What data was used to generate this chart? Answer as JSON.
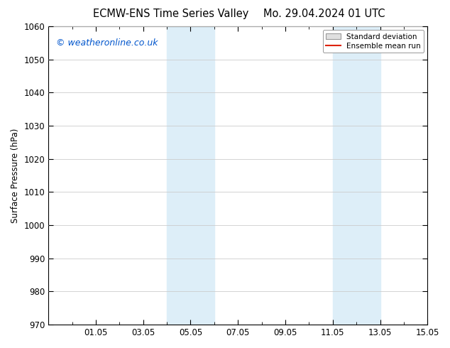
{
  "title_left": "ECMW-ENS Time Series Valley",
  "title_right": "Mo. 29.04.2024 01 UTC",
  "ylabel": "Surface Pressure (hPa)",
  "ylim": [
    970,
    1060
  ],
  "yticks": [
    970,
    980,
    990,
    1000,
    1010,
    1020,
    1030,
    1040,
    1050,
    1060
  ],
  "xlim": [
    0,
    16
  ],
  "xtick_labels": [
    "01.05",
    "03.05",
    "05.05",
    "07.05",
    "09.05",
    "11.05",
    "13.05",
    "15.05"
  ],
  "xtick_positions": [
    2,
    4,
    6,
    8,
    10,
    12,
    14,
    16
  ],
  "shaded_bands": [
    {
      "x_start": 5,
      "x_end": 7,
      "color": "#ddeef8"
    },
    {
      "x_start": 12,
      "x_end": 14,
      "color": "#ddeef8"
    }
  ],
  "watermark": "© weatheronline.co.uk",
  "watermark_color": "#0055cc",
  "legend_std_label": "Standard deviation",
  "legend_mean_label": "Ensemble mean run",
  "legend_std_facecolor": "#e0e0e0",
  "legend_std_edgecolor": "#999999",
  "legend_mean_color": "#dd2200",
  "background_color": "#ffffff",
  "plot_bg_color": "#ffffff",
  "grid_color": "#cccccc",
  "tick_label_fontsize": 8.5,
  "title_fontsize": 10.5,
  "ylabel_fontsize": 8.5,
  "watermark_fontsize": 9
}
